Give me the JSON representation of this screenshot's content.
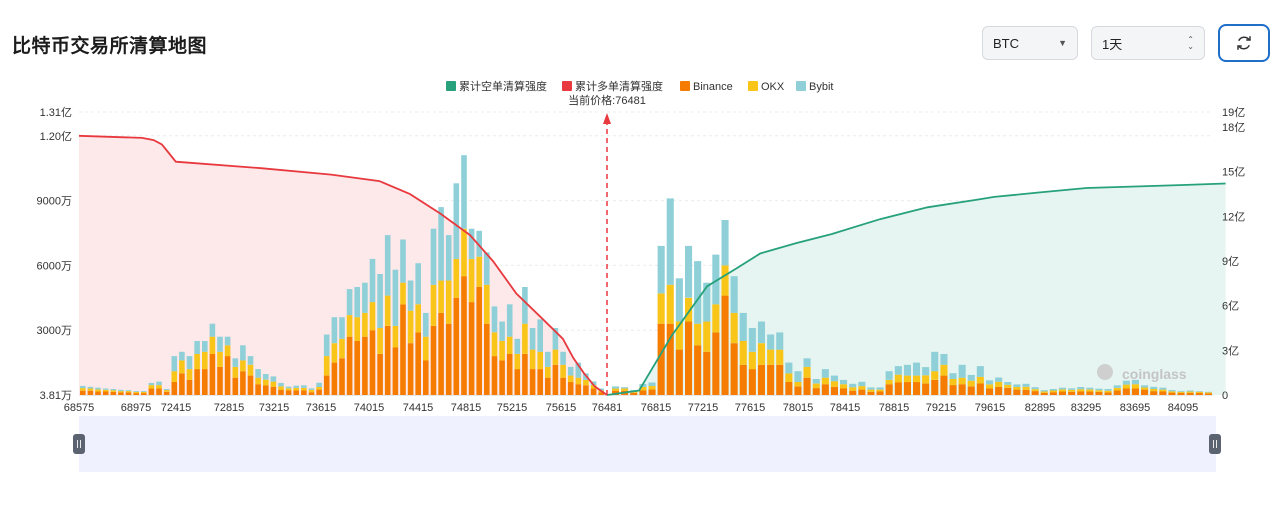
{
  "header": {
    "title": "比特币交易所清算地图",
    "coin_select": "BTC",
    "period_select": "1天",
    "refresh_icon": "refresh-icon"
  },
  "chart_data": {
    "type": "bar",
    "legend": [
      {
        "name": "累计空单清算强度",
        "color": "#26a17b"
      },
      {
        "name": "累计多单清算强度",
        "color": "#e8393f"
      },
      {
        "name": "Binance",
        "color": "#f57c00"
      },
      {
        "name": "OKX",
        "color": "#f9c518"
      },
      {
        "name": "Bybit",
        "color": "#8fd0d8"
      }
    ],
    "current_price_label": "当前价格:76481",
    "current_price": 76481,
    "x_tick_labels": [
      "68575",
      "68975",
      "72415",
      "72815",
      "73215",
      "73615",
      "74015",
      "74415",
      "74815",
      "75215",
      "75615",
      "76481",
      "76815",
      "77215",
      "77615",
      "78015",
      "78415",
      "78815",
      "79215",
      "79615",
      "82895",
      "83295",
      "83695",
      "84095"
    ],
    "left_axis_labels": [
      "1.31亿",
      "1.20亿",
      "9000万",
      "6000万",
      "3000万",
      "3.81万"
    ],
    "left_axis_values": [
      131000000,
      120000000,
      90000000,
      60000000,
      30000000,
      38100
    ],
    "right_axis_labels": [
      "19亿",
      "18亿",
      "15亿",
      "12亿",
      "9亿",
      "6亿",
      "3亿",
      "0"
    ],
    "right_axis_values": [
      1900000000,
      1800000000,
      1500000000,
      1200000000,
      900000000,
      600000000,
      300000000,
      0
    ],
    "watermark": "coinglass",
    "bars_left": [
      [
        2,
        1.2,
        1
      ],
      [
        2,
        1,
        0.8
      ],
      [
        1.6,
        1,
        0.8
      ],
      [
        1.6,
        0.8,
        0.6
      ],
      [
        1.4,
        0.8,
        0.6
      ],
      [
        1.2,
        0.6,
        0.6
      ],
      [
        1.2,
        0.6,
        0.4
      ],
      [
        0.9,
        0.5,
        0.4
      ],
      [
        0.9,
        0.5,
        0.4
      ],
      [
        3,
        1.6,
        1
      ],
      [
        3,
        1.6,
        1.6
      ],
      [
        1.5,
        0.8,
        0.5
      ],
      [
        6,
        5,
        7
      ],
      [
        10,
        6,
        4
      ],
      [
        7,
        5,
        6
      ],
      [
        12,
        7,
        6
      ],
      [
        12,
        8,
        5
      ],
      [
        19,
        8,
        6
      ],
      [
        13,
        7,
        7
      ],
      [
        18,
        5,
        4
      ],
      [
        8,
        5,
        4
      ],
      [
        11,
        5,
        7
      ],
      [
        9,
        5,
        4
      ],
      [
        5,
        3,
        4
      ],
      [
        4.5,
        2.6,
        2.6
      ],
      [
        3.8,
        2.4,
        2.4
      ],
      [
        2.4,
        1.6,
        1.6
      ],
      [
        2.1,
        1,
        0.8
      ],
      [
        2.1,
        1.2,
        1
      ],
      [
        2.1,
        1.2,
        1.2
      ],
      [
        1.3,
        1.1,
        0.7
      ],
      [
        2.5,
        1.2,
        2
      ],
      [
        9,
        9,
        10
      ],
      [
        15,
        9,
        12
      ],
      [
        17,
        9,
        10
      ],
      [
        27,
        10,
        12
      ],
      [
        25,
        11,
        14
      ],
      [
        27,
        11,
        14
      ],
      [
        30,
        13,
        20
      ],
      [
        19,
        12,
        25
      ],
      [
        32,
        14,
        28
      ],
      [
        22,
        10,
        26
      ],
      [
        42,
        10,
        20
      ],
      [
        24,
        15,
        14
      ],
      [
        29,
        13,
        19
      ],
      [
        16,
        11,
        11
      ],
      [
        32,
        19,
        26
      ],
      [
        38,
        15,
        34
      ],
      [
        33,
        20,
        21
      ],
      [
        45,
        18,
        35
      ],
      [
        55,
        22,
        34
      ],
      [
        43,
        20,
        14
      ],
      [
        50,
        14,
        12
      ],
      [
        33,
        18,
        15
      ],
      [
        18,
        11,
        12
      ],
      [
        16,
        9,
        9
      ],
      [
        19,
        8,
        15
      ],
      [
        12,
        7,
        7
      ],
      [
        19,
        14,
        17
      ],
      [
        12,
        9,
        10
      ],
      [
        12,
        8,
        15
      ],
      [
        8,
        5,
        7
      ],
      [
        14,
        7,
        10
      ],
      [
        8,
        6,
        6
      ],
      [
        6,
        3,
        4
      ],
      [
        5,
        3,
        7
      ],
      [
        4.5,
        2.5,
        3
      ],
      [
        3,
        1.6,
        1.7
      ],
      [
        1.2,
        0.9,
        0.9
      ]
    ],
    "bars_right": [
      [
        2,
        1,
        1
      ],
      [
        2,
        1,
        0.6
      ],
      [
        1,
        0.6,
        0.6
      ],
      [
        2.1,
        1.6,
        1.4
      ],
      [
        2.6,
        1.6,
        1.6
      ],
      [
        33,
        14,
        22
      ],
      [
        33,
        18,
        40
      ],
      [
        21,
        13,
        20
      ],
      [
        34,
        11,
        24
      ],
      [
        23,
        10,
        29
      ],
      [
        20,
        14,
        18
      ],
      [
        29,
        13,
        23
      ],
      [
        46,
        14,
        21
      ],
      [
        24,
        14,
        17
      ],
      [
        14,
        11,
        13
      ],
      [
        12,
        8,
        11
      ],
      [
        14,
        10,
        10
      ],
      [
        14,
        7,
        7
      ],
      [
        14,
        7,
        8
      ],
      [
        6,
        4,
        5
      ],
      [
        4,
        2,
        5
      ],
      [
        8,
        5,
        4
      ],
      [
        3.2,
        2.1,
        2.1
      ],
      [
        5,
        3,
        4
      ],
      [
        3.8,
        2.6,
        2.6
      ],
      [
        3,
        2,
        2
      ],
      [
        2,
        1.6,
        1.6
      ],
      [
        2.5,
        1.6,
        2
      ],
      [
        1.5,
        1,
        1
      ],
      [
        1.6,
        0.9,
        1
      ],
      [
        5,
        2,
        4
      ],
      [
        5.8,
        3.6,
        4
      ],
      [
        6,
        3,
        5
      ],
      [
        6,
        3,
        6
      ],
      [
        5.3,
        3.8,
        3.8
      ],
      [
        7,
        4,
        9
      ],
      [
        9,
        5,
        5
      ],
      [
        4.6,
        2.8,
        2.7
      ],
      [
        5,
        3,
        6
      ],
      [
        4,
        2.6,
        2.7
      ],
      [
        5.4,
        3,
        5
      ],
      [
        3,
        1.9,
        1.9
      ],
      [
        3.7,
        2.4,
        2
      ],
      [
        3.3,
        1.4,
        1.3
      ],
      [
        2.5,
        1.2,
        1.2
      ],
      [
        2.4,
        1.4,
        1.4
      ],
      [
        1.8,
        0.9,
        0.9
      ],
      [
        1,
        0.6,
        0.6
      ],
      [
        1.3,
        0.8,
        0.7
      ],
      [
        1.6,
        1,
        0.8
      ],
      [
        1.5,
        0.9,
        0.7
      ],
      [
        1.7,
        1,
        1
      ],
      [
        1.6,
        1,
        0.8
      ],
      [
        1.4,
        0.8,
        0.7
      ],
      [
        1.2,
        0.8,
        0.8
      ],
      [
        2.1,
        1.2,
        1.2
      ],
      [
        3,
        1.8,
        1.8
      ],
      [
        3,
        2,
        2
      ],
      [
        2.5,
        1,
        1
      ],
      [
        1.8,
        1,
        1
      ],
      [
        1.6,
        0.9,
        0.9
      ],
      [
        1.1,
        0.6,
        0.6
      ],
      [
        1,
        0.5,
        0.4
      ],
      [
        1,
        0.6,
        0.5
      ],
      [
        1,
        0.5,
        0.3
      ],
      [
        0.8,
        0.4,
        0.3
      ]
    ],
    "cum_long_curve": [
      [
        68575,
        120000000.0
      ],
      [
        69500,
        119000000.0
      ],
      [
        70500,
        118000000.0
      ],
      [
        71200,
        116000000.0
      ],
      [
        71800,
        112000000.0
      ],
      [
        72400,
        108000000.0
      ],
      [
        73100,
        105000000.0
      ],
      [
        73700,
        102000000.0
      ],
      [
        74100,
        99000000.0
      ],
      [
        74350,
        93000000.0
      ],
      [
        74600,
        84000000.0
      ],
      [
        74850,
        74000000.0
      ],
      [
        75050,
        62000000.0
      ],
      [
        75250,
        47000000.0
      ],
      [
        75450,
        36000000.0
      ],
      [
        75650,
        26000000.0
      ],
      [
        75850,
        17000000.0
      ],
      [
        76050,
        10000000.0
      ],
      [
        76250,
        4000000.0
      ],
      [
        76481,
        0
      ]
    ],
    "cum_short_curve": [
      [
        76481,
        0
      ],
      [
        76700,
        30000000.0
      ],
      [
        76950,
        400000000.0
      ],
      [
        77250,
        730000000.0
      ],
      [
        77500,
        850000000.0
      ],
      [
        77700,
        950000000.0
      ],
      [
        78000,
        1020000000.0
      ],
      [
        78300,
        1080000000.0
      ],
      [
        78700,
        1180000000.0
      ],
      [
        79100,
        1260000000.0
      ],
      [
        79500,
        1310000000.0
      ],
      [
        79900,
        1330000000.0
      ],
      [
        82895,
        1360000000.0
      ],
      [
        83300,
        1390000000.0
      ],
      [
        83695,
        1400000000.0
      ],
      [
        84095,
        1410000000.0
      ],
      [
        84450,
        1420000000.0
      ]
    ],
    "x_range": [
      68575,
      84450
    ],
    "left_ylim": [
      0,
      131000000
    ],
    "right_ylim": [
      0,
      1900000000
    ]
  }
}
